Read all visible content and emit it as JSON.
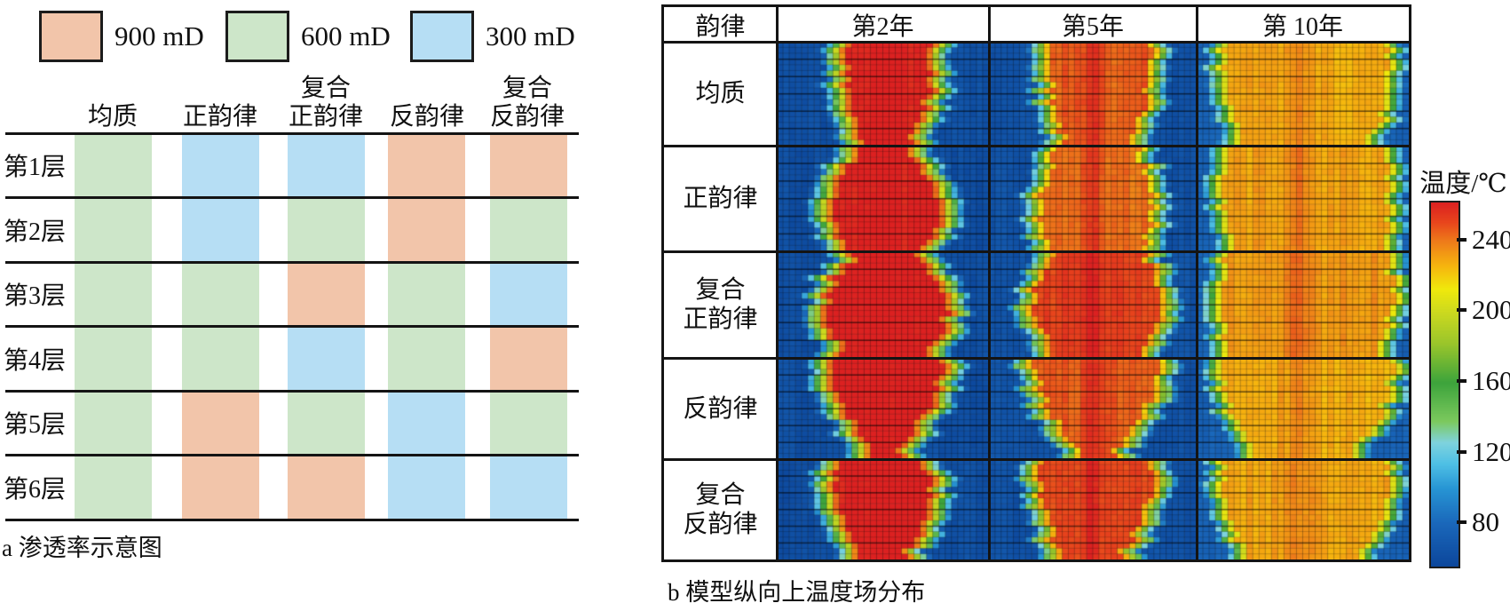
{
  "chart_data": [
    {
      "type": "table",
      "name": "permeability-schematic",
      "caption": "a 渗透率示意图",
      "legend": [
        {
          "label": "900 mD",
          "color": "#f2c5aa"
        },
        {
          "label": "600 mD",
          "color": "#cde6c9"
        },
        {
          "label": "300 mD",
          "color": "#b6def4"
        }
      ],
      "columns": [
        "均质",
        "正韵律",
        "复合正韵律",
        "反韵律",
        "复合反韵律"
      ],
      "columns_2line": [
        [
          "均质"
        ],
        [
          "正韵律"
        ],
        [
          "复合",
          "正韵律"
        ],
        [
          "反韵律"
        ],
        [
          "复合",
          "反韵律"
        ]
      ],
      "rows": [
        "第1层",
        "第2层",
        "第3层",
        "第4层",
        "第5层",
        "第6层"
      ],
      "values_mD": [
        [
          600,
          300,
          300,
          900,
          900
        ],
        [
          600,
          300,
          600,
          900,
          600
        ],
        [
          600,
          600,
          900,
          600,
          300
        ],
        [
          600,
          600,
          300,
          600,
          900
        ],
        [
          600,
          900,
          600,
          300,
          600
        ],
        [
          600,
          900,
          900,
          300,
          300
        ]
      ],
      "palette_mD": {
        "900": "#f2c5aa",
        "600": "#cde6c9",
        "300": "#b6def4"
      }
    },
    {
      "type": "heatmap",
      "name": "temperature-field",
      "caption": "b 模型纵向上温度场分布",
      "col_headers": [
        "韵律",
        "第2年",
        "第5年",
        "第 10年"
      ],
      "row_labels": [
        "均质",
        "正韵律",
        "复合正韵律",
        "反韵律",
        "复合反韵律"
      ],
      "row_labels_2line": [
        [
          "均质"
        ],
        [
          "正韵律"
        ],
        [
          "复合",
          "正韵律"
        ],
        [
          "反韵律"
        ],
        [
          "复合",
          "反韵律"
        ]
      ],
      "colorbar": {
        "label": "温度/℃",
        "ticks": [
          240,
          200,
          160,
          120,
          80
        ],
        "domain_c": [
          56,
          262
        ]
      },
      "colormap_anchors": [
        [
          56,
          "#0c479c"
        ],
        [
          80,
          "#1a67ba"
        ],
        [
          100,
          "#2795d4"
        ],
        [
          114,
          "#4fc0e5"
        ],
        [
          126,
          "#7fd3de"
        ],
        [
          138,
          "#7cc95e"
        ],
        [
          160,
          "#3da43c"
        ],
        [
          182,
          "#9ac52b"
        ],
        [
          200,
          "#ccd91f"
        ],
        [
          213,
          "#f0e90c"
        ],
        [
          226,
          "#f6b60e"
        ],
        [
          240,
          "#ee7c1a"
        ],
        [
          251,
          "#e8451c"
        ],
        [
          262,
          "#dc2121"
        ]
      ],
      "years": [
        {
          "label": "第2年",
          "tmin": 62,
          "trans": 0.13,
          "bump": 4,
          "bump_u": 0.5,
          "bump_sigma": 0.05
        },
        {
          "label": "第5年",
          "tmin": 64,
          "trans": 0.12,
          "bump": 13,
          "bump_u": 0.5,
          "bump_sigma": 0.045
        },
        {
          "label": "第 10年",
          "tmin": 76,
          "trans": 0.11,
          "bump": 10,
          "bump_u": 0.47,
          "bump_sigma": 0.06
        }
      ],
      "panels": [
        {
          "rhythm": "均质",
          "years": [
            {
              "peak_c": 263,
              "hot_left": [
                0.34,
                0.34,
                0.35,
                0.36,
                0.38,
                0.41
              ],
              "hot_right": [
                0.72,
                0.72,
                0.71,
                0.7,
                0.67,
                0.63
              ]
            },
            {
              "peak_c": 246,
              "hot_left": [
                0.29,
                0.29,
                0.3,
                0.31,
                0.33,
                0.36
              ],
              "hot_right": [
                0.77,
                0.77,
                0.76,
                0.75,
                0.72,
                0.68
              ]
            },
            {
              "peak_c": 229,
              "hot_left": [
                0.14,
                0.14,
                0.15,
                0.16,
                0.18,
                0.21
              ],
              "hot_right": [
                0.9,
                0.9,
                0.89,
                0.88,
                0.86,
                0.82
              ]
            }
          ]
        },
        {
          "rhythm": "正韵律",
          "years": [
            {
              "peak_c": 263,
              "hot_left": [
                0.38,
                0.33,
                0.28,
                0.27,
                0.28,
                0.31
              ],
              "hot_right": [
                0.63,
                0.68,
                0.74,
                0.76,
                0.75,
                0.7
              ]
            },
            {
              "peak_c": 243,
              "hot_left": [
                0.32,
                0.29,
                0.26,
                0.25,
                0.26,
                0.29
              ],
              "hot_right": [
                0.72,
                0.75,
                0.78,
                0.79,
                0.78,
                0.74
              ]
            },
            {
              "peak_c": 231,
              "hot_left": [
                0.15,
                0.14,
                0.13,
                0.13,
                0.14,
                0.16
              ],
              "hot_right": [
                0.89,
                0.9,
                0.91,
                0.91,
                0.9,
                0.87
              ]
            }
          ]
        },
        {
          "rhythm": "复合正韵律",
          "years": [
            {
              "peak_c": 264,
              "hot_left": [
                0.36,
                0.28,
                0.24,
                0.24,
                0.27,
                0.32
              ],
              "hot_right": [
                0.66,
                0.74,
                0.79,
                0.8,
                0.77,
                0.7
              ]
            },
            {
              "peak_c": 252,
              "hot_left": [
                0.3,
                0.25,
                0.22,
                0.22,
                0.25,
                0.29
              ],
              "hot_right": [
                0.76,
                0.8,
                0.83,
                0.83,
                0.8,
                0.74
              ]
            },
            {
              "peak_c": 233,
              "hot_left": [
                0.14,
                0.13,
                0.12,
                0.12,
                0.13,
                0.15
              ],
              "hot_right": [
                0.9,
                0.91,
                0.92,
                0.92,
                0.9,
                0.87
              ]
            }
          ]
        },
        {
          "rhythm": "反韵律",
          "years": [
            {
              "peak_c": 263,
              "hot_left": [
                0.25,
                0.27,
                0.3,
                0.34,
                0.38,
                0.44
              ],
              "hot_right": [
                0.78,
                0.76,
                0.73,
                0.69,
                0.64,
                0.57
              ]
            },
            {
              "peak_c": 246,
              "hot_left": [
                0.22,
                0.24,
                0.27,
                0.31,
                0.36,
                0.42
              ],
              "hot_right": [
                0.82,
                0.8,
                0.77,
                0.73,
                0.67,
                0.6
              ]
            },
            {
              "peak_c": 228,
              "hot_left": [
                0.12,
                0.13,
                0.15,
                0.18,
                0.22,
                0.27
              ],
              "hot_right": [
                0.92,
                0.91,
                0.89,
                0.86,
                0.81,
                0.74
              ]
            }
          ]
        },
        {
          "rhythm": "复合反韵律",
          "years": [
            {
              "peak_c": 263,
              "hot_left": [
                0.3,
                0.27,
                0.29,
                0.31,
                0.34,
                0.38
              ],
              "hot_right": [
                0.7,
                0.74,
                0.72,
                0.7,
                0.66,
                0.61
              ]
            },
            {
              "peak_c": 250,
              "hot_left": [
                0.26,
                0.24,
                0.26,
                0.28,
                0.31,
                0.35
              ],
              "hot_right": [
                0.77,
                0.79,
                0.77,
                0.74,
                0.7,
                0.64
              ]
            },
            {
              "peak_c": 230,
              "hot_left": [
                0.13,
                0.13,
                0.14,
                0.16,
                0.19,
                0.23
              ],
              "hot_right": [
                0.91,
                0.91,
                0.89,
                0.87,
                0.83,
                0.78
              ]
            }
          ]
        }
      ]
    }
  ]
}
